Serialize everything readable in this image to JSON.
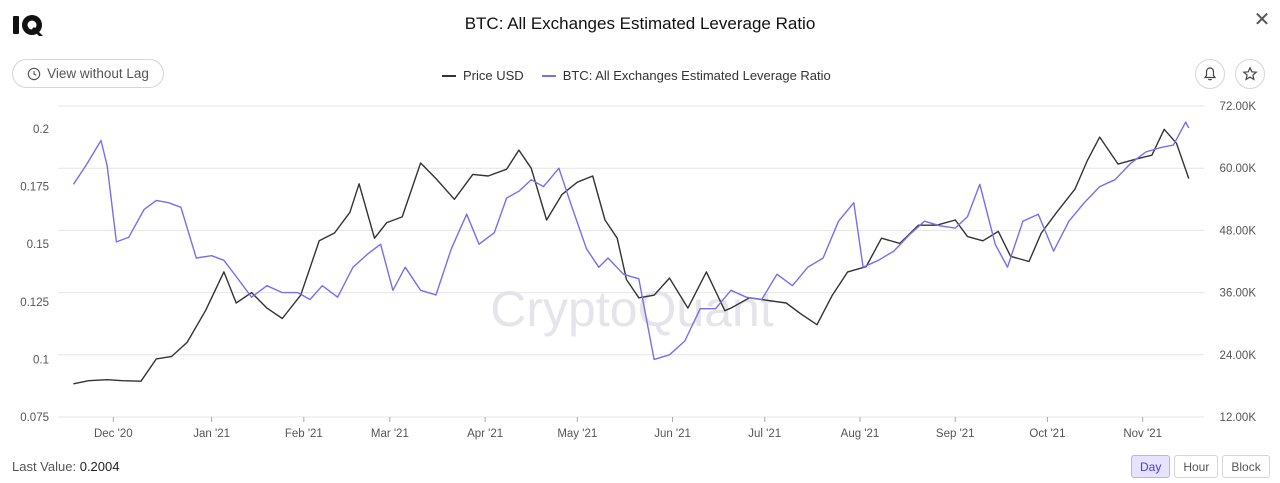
{
  "header": {
    "title": "BTC: All Exchanges Estimated Leverage Ratio",
    "view_button_label": "View without Lag"
  },
  "legend": {
    "items": [
      {
        "label": "Price USD",
        "color": "#333333"
      },
      {
        "label": "BTC: All Exchanges Estimated Leverage Ratio",
        "color": "#7b6cf0"
      }
    ]
  },
  "watermark": "CryptoQuant",
  "footer": {
    "last_value_label": "Last Value:",
    "last_value": "0.2004",
    "range_buttons": [
      "Day",
      "Hour",
      "Block"
    ],
    "active_range": "Day"
  },
  "chart_data": {
    "type": "line",
    "x_tick_labels": [
      "Dec '20",
      "Jan '21",
      "Feb '21",
      "Mar '21",
      "Apr '21",
      "May '21",
      "Jun '21",
      "Jul '21",
      "Aug '21",
      "Sep '21",
      "Oct '21",
      "Nov '21"
    ],
    "y_left": {
      "tick_labels": [
        "0.075",
        "0.1",
        "0.125",
        "0.15",
        "0.175",
        "0.2"
      ],
      "range": [
        0.075,
        0.2
      ]
    },
    "y_right": {
      "tick_labels": [
        "12.00K",
        "24.00K",
        "36.00K",
        "48.00K",
        "60.00K",
        "72.00K"
      ],
      "range": [
        12000,
        72000
      ]
    },
    "grid": true,
    "series": [
      {
        "name": "Price USD",
        "axis": "right",
        "color": "#333333",
        "x": [
          "2020-11-20",
          "2020-11-25",
          "2020-12-01",
          "2020-12-06",
          "2020-12-12",
          "2020-12-17",
          "2020-12-22",
          "2020-12-27",
          "2021-01-02",
          "2021-01-08",
          "2021-01-12",
          "2021-01-17",
          "2021-01-22",
          "2021-01-27",
          "2021-02-02",
          "2021-02-08",
          "2021-02-13",
          "2021-02-18",
          "2021-02-21",
          "2021-02-26",
          "2021-03-02",
          "2021-03-07",
          "2021-03-13",
          "2021-03-18",
          "2021-03-24",
          "2021-03-30",
          "2021-04-04",
          "2021-04-10",
          "2021-04-14",
          "2021-04-18",
          "2021-04-23",
          "2021-04-28",
          "2021-05-03",
          "2021-05-08",
          "2021-05-12",
          "2021-05-16",
          "2021-05-19",
          "2021-05-23",
          "2021-05-28",
          "2021-06-02",
          "2021-06-08",
          "2021-06-14",
          "2021-06-20",
          "2021-06-22",
          "2021-06-28",
          "2021-07-04",
          "2021-07-10",
          "2021-07-15",
          "2021-07-20",
          "2021-07-25",
          "2021-07-30",
          "2021-08-05",
          "2021-08-10",
          "2021-08-16",
          "2021-08-22",
          "2021-08-28",
          "2021-09-03",
          "2021-09-07",
          "2021-09-12",
          "2021-09-17",
          "2021-09-21",
          "2021-09-27",
          "2021-10-01",
          "2021-10-06",
          "2021-10-12",
          "2021-10-16",
          "2021-10-20",
          "2021-10-26",
          "2021-11-01",
          "2021-11-06",
          "2021-11-10",
          "2021-11-14",
          "2021-11-18"
        ],
        "values": [
          18400,
          19000,
          19200,
          19000,
          18900,
          23200,
          23700,
          26400,
          32500,
          40000,
          34000,
          36000,
          33000,
          31000,
          35500,
          46000,
          47500,
          51500,
          57000,
          46500,
          49500,
          50600,
          61000,
          58000,
          54000,
          58800,
          58500,
          59800,
          63500,
          60000,
          50000,
          54900,
          57300,
          58500,
          50000,
          46500,
          38500,
          35000,
          35500,
          38800,
          33000,
          40000,
          32500,
          33000,
          35000,
          34500,
          34000,
          31800,
          29800,
          35500,
          40000,
          41000,
          46500,
          45500,
          49000,
          49000,
          50000,
          46800,
          46000,
          47800,
          43000,
          42000,
          47500,
          51500,
          56000,
          61500,
          66000,
          60800,
          61800,
          62500,
          67500,
          64800,
          58000
        ]
      },
      {
        "name": "BTC: All Exchanges Estimated Leverage Ratio",
        "axis": "left",
        "color": "#7b6cf0",
        "x": [
          "2020-11-20",
          "2020-11-24",
          "2020-11-29",
          "2020-12-01",
          "2020-12-04",
          "2020-12-08",
          "2020-12-13",
          "2020-12-17",
          "2020-12-21",
          "2020-12-25",
          "2020-12-30",
          "2021-01-04",
          "2021-01-08",
          "2021-01-12",
          "2021-01-17",
          "2021-01-22",
          "2021-01-27",
          "2021-02-01",
          "2021-02-05",
          "2021-02-09",
          "2021-02-14",
          "2021-02-19",
          "2021-02-24",
          "2021-02-28",
          "2021-03-04",
          "2021-03-08",
          "2021-03-13",
          "2021-03-18",
          "2021-03-23",
          "2021-03-28",
          "2021-04-01",
          "2021-04-06",
          "2021-04-10",
          "2021-04-14",
          "2021-04-18",
          "2021-04-22",
          "2021-04-27",
          "2021-05-01",
          "2021-05-06",
          "2021-05-10",
          "2021-05-13",
          "2021-05-18",
          "2021-05-23",
          "2021-05-28",
          "2021-06-02",
          "2021-06-07",
          "2021-06-12",
          "2021-06-17",
          "2021-06-22",
          "2021-06-27",
          "2021-07-02",
          "2021-07-07",
          "2021-07-12",
          "2021-07-17",
          "2021-07-22",
          "2021-07-27",
          "2021-08-01",
          "2021-08-04",
          "2021-08-09",
          "2021-08-14",
          "2021-08-19",
          "2021-08-24",
          "2021-08-29",
          "2021-09-03",
          "2021-09-07",
          "2021-09-11",
          "2021-09-16",
          "2021-09-20",
          "2021-09-25",
          "2021-09-30",
          "2021-10-05",
          "2021-10-10",
          "2021-10-15",
          "2021-10-20",
          "2021-10-25",
          "2021-10-30",
          "2021-11-04",
          "2021-11-09",
          "2021-11-13",
          "2021-11-17",
          "2021-11-18"
        ],
        "values": [
          0.176,
          0.184,
          0.195,
          0.184,
          0.151,
          0.153,
          0.165,
          0.169,
          0.168,
          0.166,
          0.144,
          0.145,
          0.143,
          0.136,
          0.127,
          0.132,
          0.129,
          0.129,
          0.126,
          0.132,
          0.127,
          0.14,
          0.146,
          0.15,
          0.13,
          0.14,
          0.13,
          0.128,
          0.148,
          0.163,
          0.15,
          0.155,
          0.17,
          0.173,
          0.178,
          0.175,
          0.183,
          0.167,
          0.148,
          0.14,
          0.144,
          0.137,
          0.135,
          0.1,
          0.102,
          0.108,
          0.122,
          0.122,
          0.13,
          0.127,
          0.126,
          0.137,
          0.132,
          0.14,
          0.144,
          0.16,
          0.168,
          0.14,
          0.143,
          0.147,
          0.154,
          0.16,
          0.158,
          0.157,
          0.162,
          0.176,
          0.15,
          0.14,
          0.16,
          0.163,
          0.147,
          0.16,
          0.168,
          0.175,
          0.178,
          0.185,
          0.19,
          0.192,
          0.193,
          0.203,
          0.2004
        ]
      }
    ]
  }
}
